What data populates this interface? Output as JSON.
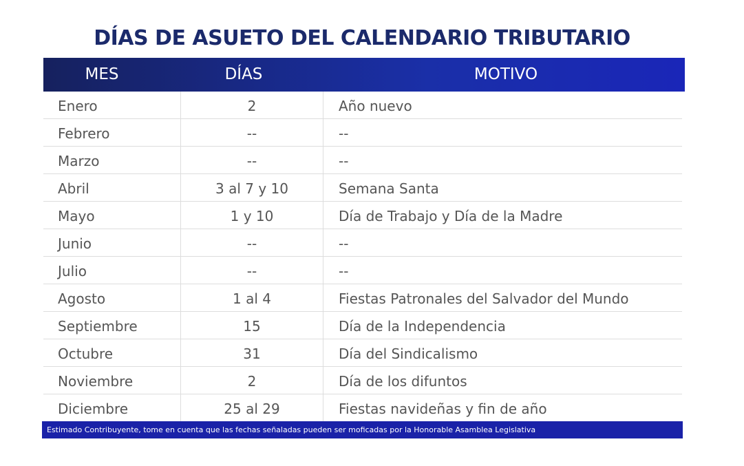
{
  "header": {
    "title": "DÍAS DE ASUETO DEL CALENDARIO TRIBUTARIO"
  },
  "table": {
    "columns": [
      "MES",
      "DÍAS",
      "MOTIVO"
    ],
    "rows": [
      [
        "Enero",
        "2",
        "Año nuevo"
      ],
      [
        "Febrero",
        "--",
        "--"
      ],
      [
        "Marzo",
        "--",
        "--"
      ],
      [
        "Abril",
        "3 al 7 y 10",
        "Semana Santa"
      ],
      [
        "Mayo",
        "1 y 10",
        "Día de Trabajo y Día de la Madre"
      ],
      [
        "Junio",
        "--",
        "--"
      ],
      [
        "Julio",
        "--",
        "--"
      ],
      [
        "Agosto",
        "1 al 4",
        "Fiestas Patronales del Salvador del Mundo"
      ],
      [
        "Septiembre",
        "15",
        "Día de la Independencia"
      ],
      [
        "Octubre",
        "31",
        "Día del Sindicalismo"
      ],
      [
        "Noviembre",
        "2",
        "Día de los difuntos"
      ],
      [
        "Diciembre",
        "25 al 29",
        "Fiestas navideñas y fin de año"
      ]
    ]
  },
  "footer": {
    "note": "Estimado Contribuyente, tome en cuenta que las fechas señaladas pueden ser moficadas por la Honorable Asamblea Legislativa"
  }
}
